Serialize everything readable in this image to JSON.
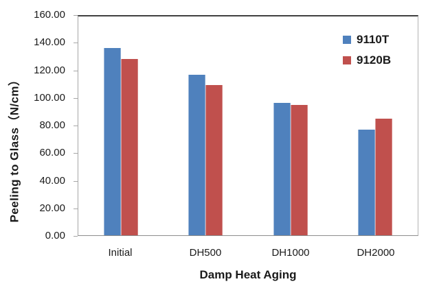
{
  "chart_data": {
    "type": "bar",
    "title": "",
    "categories": [
      "Initial",
      "DH500",
      "DH1000",
      "DH2000"
    ],
    "series": [
      {
        "name": "9110T",
        "color": "#4F81BD",
        "values": [
          136.5,
          117,
          96.5,
          77
        ]
      },
      {
        "name": "9120B",
        "color": "#C0504D",
        "values": [
          128.5,
          109.5,
          95,
          85
        ]
      }
    ],
    "xlabel": "Damp Heat Aging",
    "ylabel": "Peeling to Glass（N/cm）",
    "ylim": [
      0,
      160
    ],
    "ytick_step": 20,
    "ytick_labels": [
      "160.00",
      "140.00",
      "120.00",
      "100.00",
      "80.00",
      "60.00",
      "40.00",
      "20.00",
      "0.00"
    ],
    "grid": false,
    "legend_position": "top-right-inside",
    "colors": {
      "axis_line": "#a6a6a6",
      "plot_top_border": "#3f3f3f",
      "text": "#1a1a1a",
      "background": "#ffffff"
    }
  }
}
